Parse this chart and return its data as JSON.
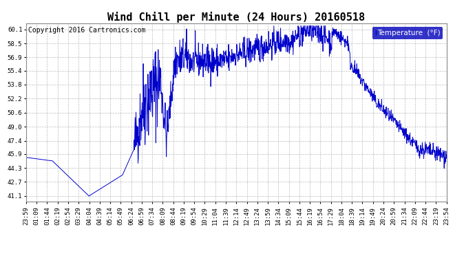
{
  "title": "Wind Chill per Minute (24 Hours) 20160518",
  "copyright_text": "Copyright 2016 Cartronics.com",
  "legend_label": "Temperature  (°F)",
  "line_color": "#0000cc",
  "bg_color": "#ffffff",
  "plot_bg_color": "#ffffff",
  "grid_color": "#aaaaaa",
  "legend_bg": "#0000bb",
  "legend_fg": "#ffffff",
  "yticks": [
    41.1,
    42.7,
    44.3,
    45.9,
    47.4,
    49.0,
    50.6,
    52.2,
    53.8,
    55.4,
    56.9,
    58.5,
    60.1
  ],
  "ylim": [
    40.5,
    60.8
  ],
  "xtick_labels": [
    "23:59",
    "01:09",
    "01:44",
    "02:19",
    "02:54",
    "03:29",
    "04:04",
    "04:39",
    "05:14",
    "05:49",
    "06:24",
    "06:59",
    "07:34",
    "08:09",
    "08:44",
    "09:19",
    "09:54",
    "10:29",
    "11:04",
    "11:39",
    "12:14",
    "12:49",
    "13:24",
    "13:59",
    "14:34",
    "15:09",
    "15:44",
    "16:19",
    "16:54",
    "17:29",
    "18:04",
    "18:39",
    "19:14",
    "19:49",
    "20:24",
    "20:59",
    "21:34",
    "22:09",
    "22:44",
    "23:19",
    "23:54"
  ],
  "title_fontsize": 11,
  "axis_fontsize": 6.5,
  "copyright_fontsize": 7
}
